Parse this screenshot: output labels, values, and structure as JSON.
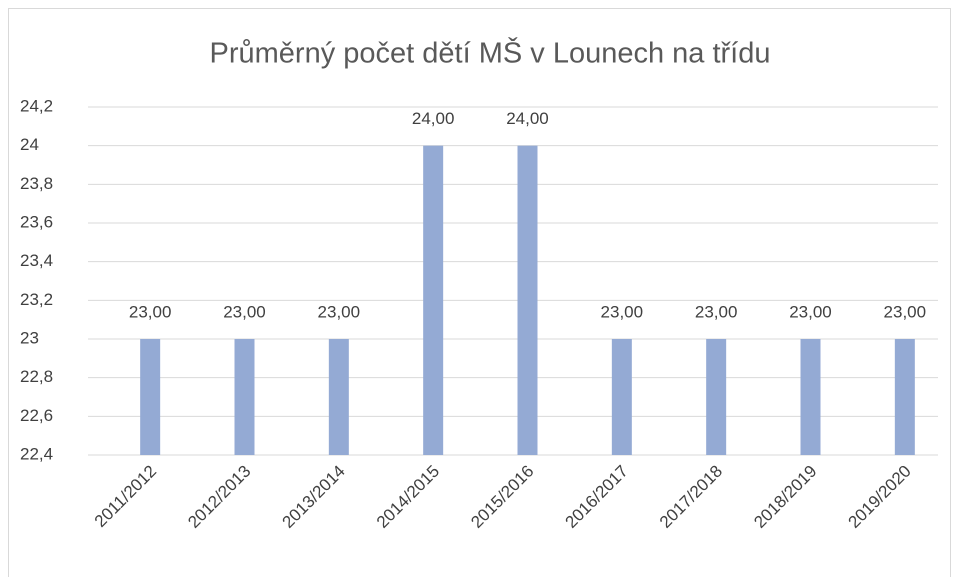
{
  "chart_data": {
    "type": "bar",
    "title": "Průměrný počet dětí MŠ v Lounech na třídu",
    "categories": [
      "2011/2012",
      "2012/2013",
      "2013/2014",
      "2014/2015",
      "2015/2016",
      "2016/2017",
      "2017/2018",
      "2018/2019",
      "2019/2020"
    ],
    "values": [
      23,
      23,
      23,
      24,
      24,
      23,
      23,
      23,
      23
    ],
    "value_labels": [
      "23,00",
      "23,00",
      "23,00",
      "24,00",
      "24,00",
      "23,00",
      "23,00",
      "23,00",
      "23,00"
    ],
    "color": "#94aad4",
    "ylim": [
      22.4,
      24.2
    ],
    "yticks": [
      {
        "value": 22.4,
        "label": "22,4"
      },
      {
        "value": 22.6,
        "label": "22,6"
      },
      {
        "value": 22.8,
        "label": "22,8"
      },
      23,
      {
        "value": 23.2,
        "label": "23,2"
      },
      {
        "value": 23.4,
        "label": "23,4"
      },
      {
        "value": 23.6,
        "label": "23,6"
      },
      {
        "value": 23.8,
        "label": "23,8"
      },
      24,
      {
        "value": 24.2,
        "label": "24,2"
      }
    ],
    "grid": true
  }
}
